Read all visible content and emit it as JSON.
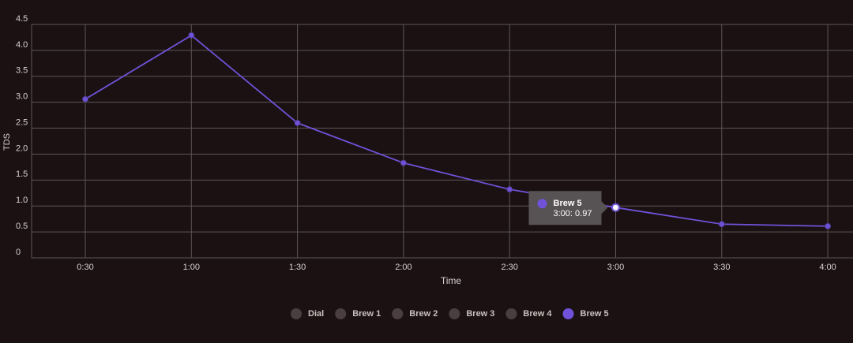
{
  "chart_data": {
    "type": "line",
    "xlabel": "Time",
    "ylabel": "TDS",
    "categories": [
      "0:30",
      "1:00",
      "1:30",
      "2:00",
      "2:30",
      "3:00",
      "3:30",
      "4:00"
    ],
    "series": [
      {
        "name": "Brew 5",
        "color": "#6f52d9",
        "values": [
          3.06,
          4.29,
          2.6,
          1.83,
          1.32,
          0.97,
          0.65,
          0.61
        ]
      }
    ],
    "legend": [
      {
        "name": "Dial",
        "color": "#4a3e40"
      },
      {
        "name": "Brew 1",
        "color": "#4a3e40"
      },
      {
        "name": "Brew 2",
        "color": "#4a3e40"
      },
      {
        "name": "Brew 3",
        "color": "#4a3e40"
      },
      {
        "name": "Brew 4",
        "color": "#4a3e40"
      }
    ],
    "ylim": [
      0,
      4.5
    ],
    "yticks": [
      0,
      0.5,
      {
        "value": 1,
        "label": "1.0"
      },
      1.5,
      {
        "value": 2,
        "label": "2.0"
      },
      2.5,
      {
        "value": 3,
        "label": "3.0"
      },
      3.5,
      {
        "value": 4,
        "label": "4.0"
      },
      4.5
    ],
    "grid": true,
    "tooltip": {
      "title": "Brew 5",
      "text": "3:00: 0.97"
    }
  }
}
